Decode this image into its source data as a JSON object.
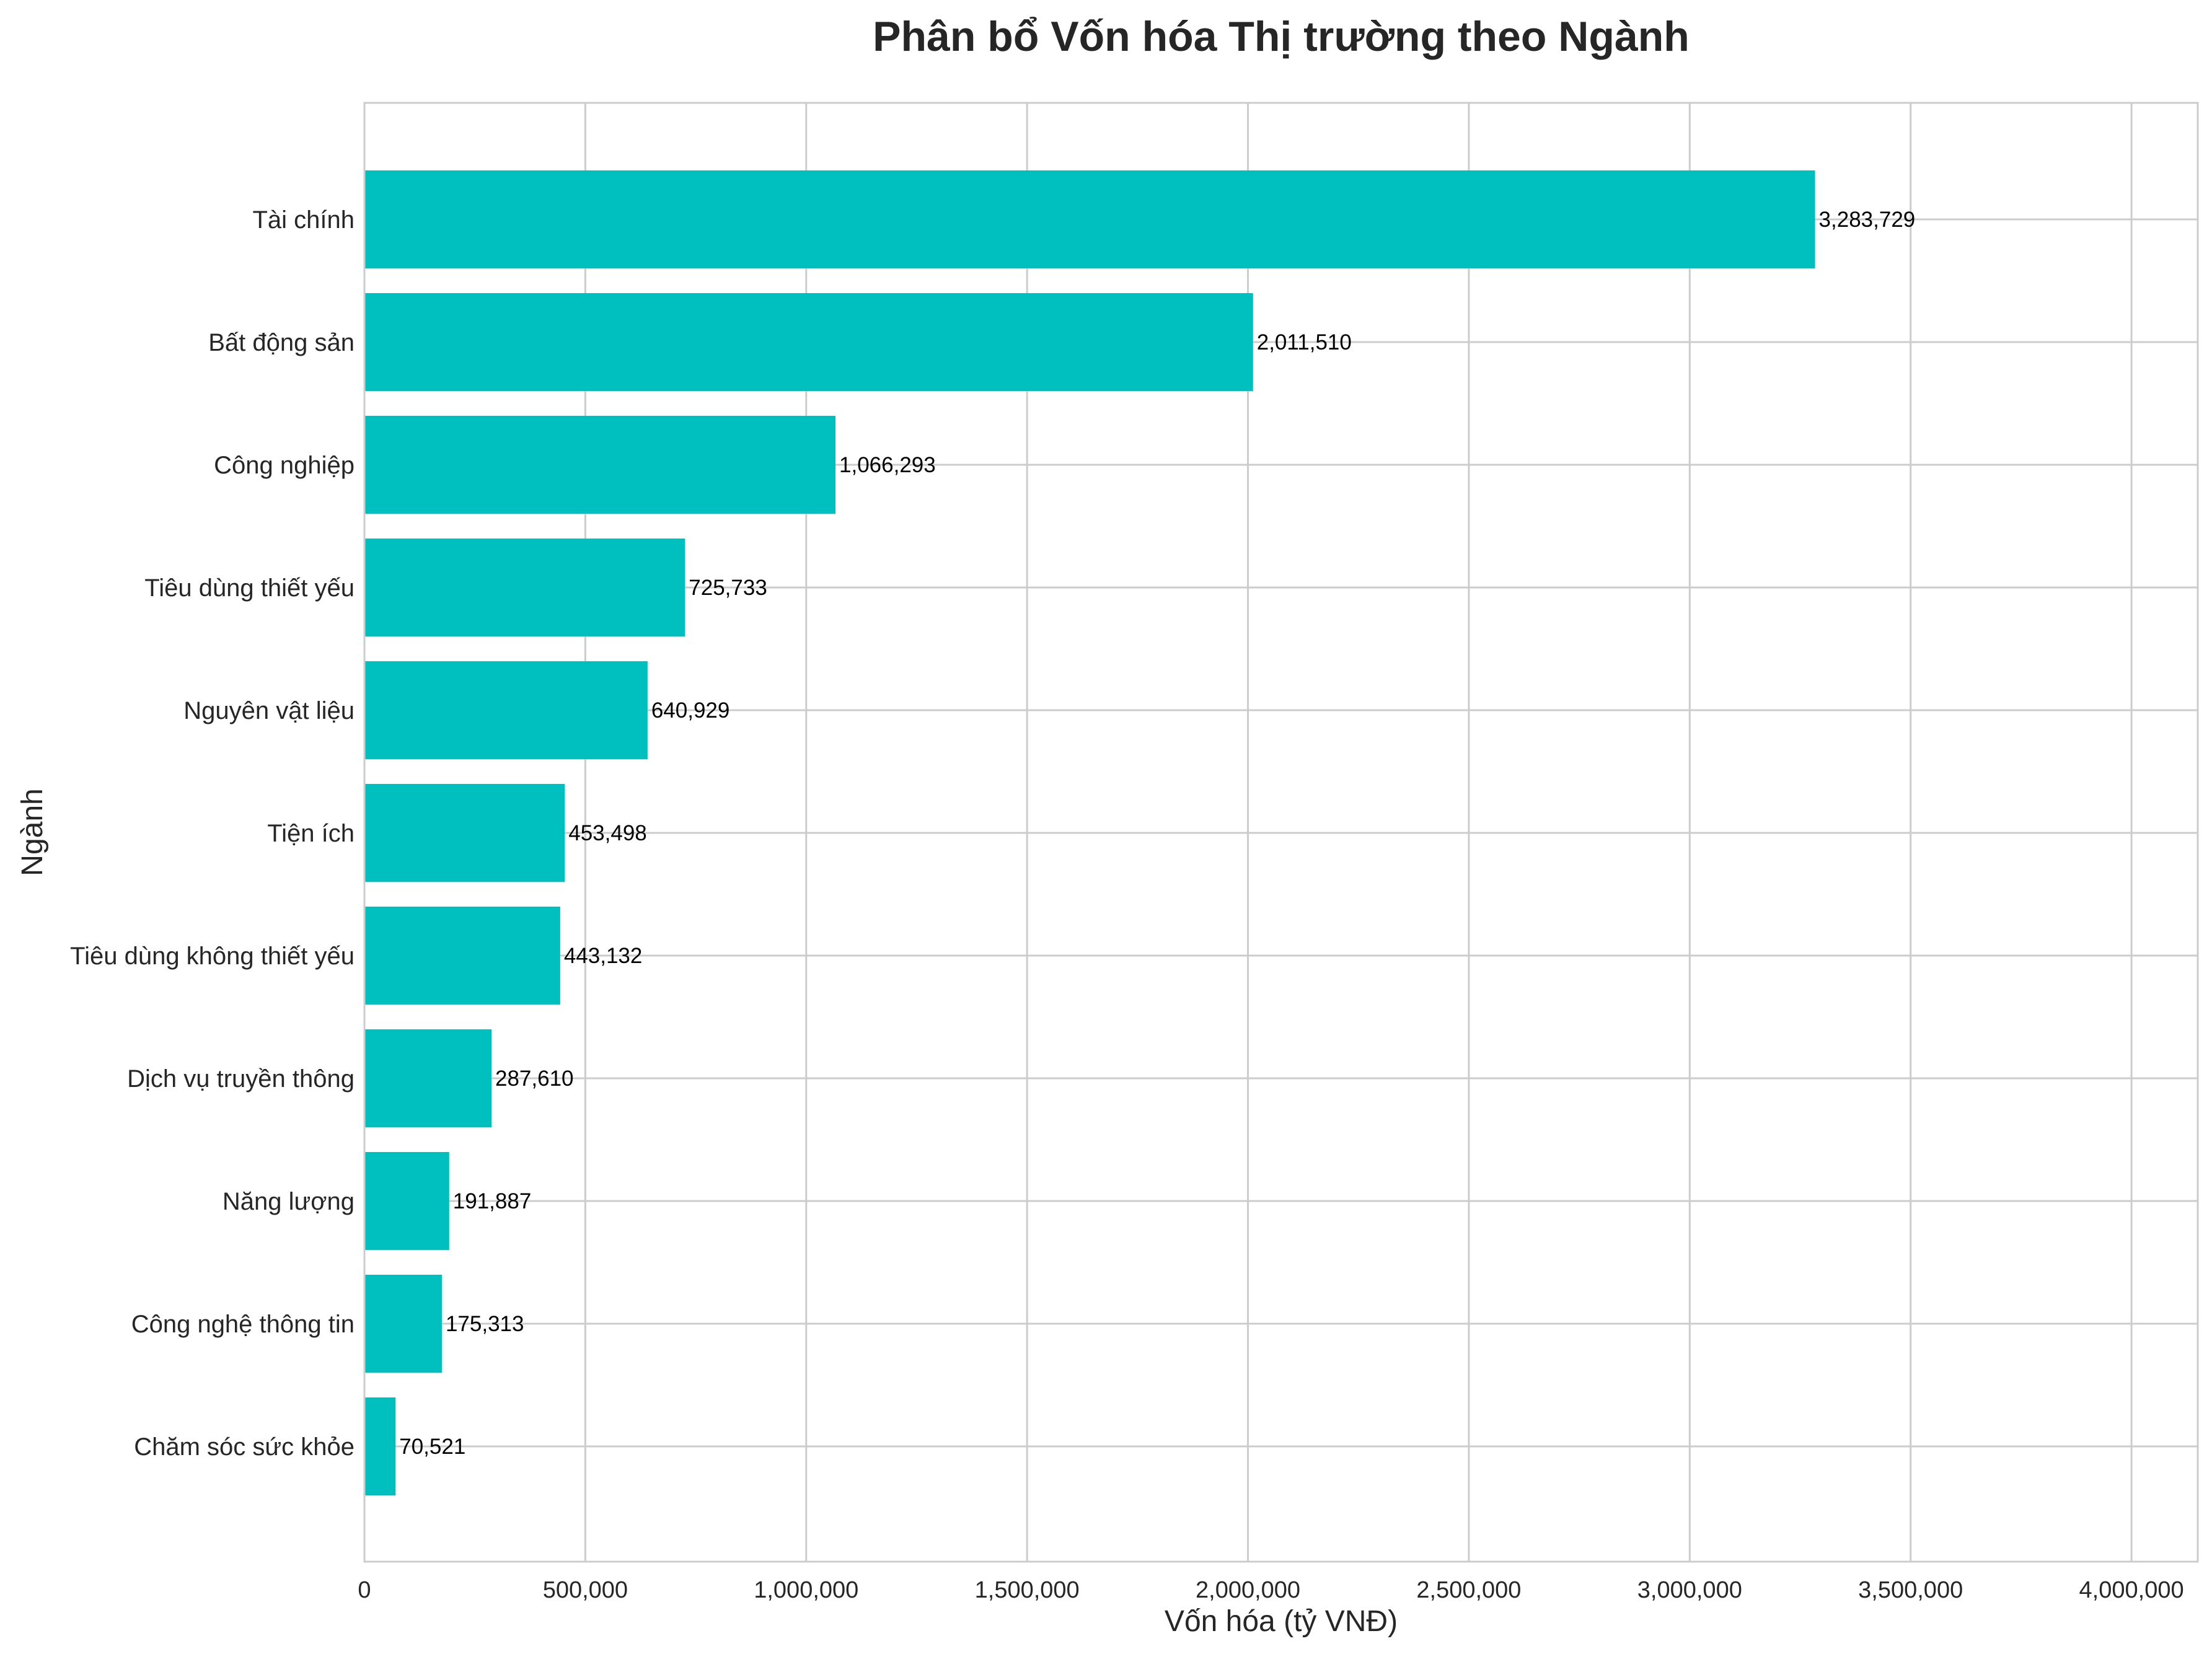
{
  "chart_data": {
    "type": "bar",
    "orientation": "horizontal",
    "title": "Phân bổ Vốn hóa Thị trường theo Ngành",
    "xlabel": "Vốn hóa (tỷ VNĐ)",
    "ylabel": "Ngành",
    "xlim": [
      0,
      4150000
    ],
    "xticks": [
      0,
      500000,
      1000000,
      1500000,
      2000000,
      2500000,
      3000000,
      3500000,
      4000000
    ],
    "xtick_labels": [
      "0",
      "500,000",
      "1,000,000",
      "1,500,000",
      "2,000,000",
      "2,500,000",
      "3,000,000",
      "3,500,000",
      "4,000,000"
    ],
    "grid": true,
    "bar_color": "#00BFBF",
    "categories": [
      "Tài chính",
      "Bất động sản",
      "Công nghiệp",
      "Tiêu dùng thiết yếu",
      "Nguyên vật liệu",
      "Tiện ích",
      "Tiêu dùng không thiết yếu",
      "Dịch vụ truyền thông",
      "Năng lượng",
      "Công nghệ thông tin",
      "Chăm sóc sức khỏe"
    ],
    "values": [
      3283729,
      2011510,
      1066293,
      725733,
      640929,
      453498,
      443132,
      287610,
      191887,
      175313,
      70521
    ],
    "value_labels": [
      "3,283,729",
      "2,011,510",
      "1,066,293",
      "725,733",
      "640,929",
      "453,498",
      "443,132",
      "287,610",
      "191,887",
      "175,313",
      "70,521"
    ]
  }
}
